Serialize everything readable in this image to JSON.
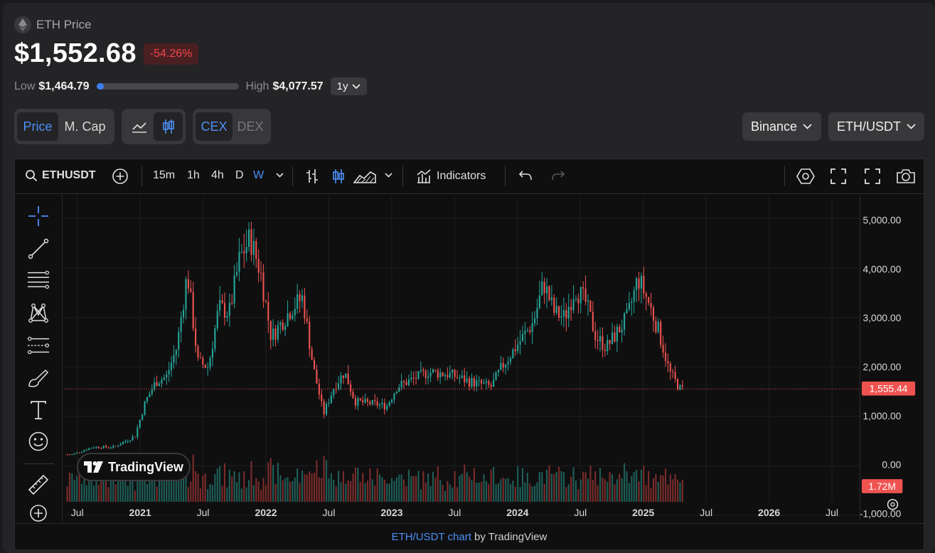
{
  "header": {
    "title": "ETH Price",
    "price": "$1,552.68",
    "change": "-54.26%",
    "range": {
      "low_label": "Low",
      "low": "$1,464.79",
      "high_label": "High",
      "high": "$4,077.57",
      "position_fraction": 0.03,
      "period": "1y"
    }
  },
  "controls": {
    "metric": [
      "Price",
      "M. Cap"
    ],
    "metric_selected": "Price",
    "venue": [
      "CEX",
      "DEX"
    ],
    "venue_selected": "CEX",
    "exchange": "Binance",
    "pair": "ETH/USDT"
  },
  "toolbar": {
    "symbol": "ETHUSDT",
    "intervals": [
      "15m",
      "1h",
      "4h",
      "D",
      "W"
    ],
    "interval_selected": "W",
    "indicators": "Indicators"
  },
  "icons": [
    "ethereum-icon",
    "chevron-down-icon",
    "line-chart-icon",
    "candlestick-icon",
    "search-icon",
    "plus-circle-icon",
    "bar-style-icon",
    "area-style-icon",
    "indicators-icon",
    "undo-icon",
    "redo-icon",
    "settings-icon",
    "fullscreen-icon",
    "expand-icon",
    "camera-icon",
    "crosshair-icon",
    "trendline-icon",
    "fib-icon",
    "pattern-icon",
    "forecast-icon",
    "brush-icon",
    "text-icon",
    "emoji-icon",
    "ruler-icon",
    "zoom-in-icon",
    "gear-icon"
  ],
  "colors": {
    "up": "#26a69a",
    "down": "#ef5350",
    "accent": "#3c7df0",
    "price_line": "#ef5350"
  },
  "chart_data": {
    "type": "candlestick",
    "interval": "weekly",
    "y_ticks": [
      "5,000.00",
      "4,000.00",
      "3,000.00",
      "2,000.00",
      "1,000.00",
      "0.00",
      "-1,000.00"
    ],
    "ylim": [
      -1100,
      5450
    ],
    "x_ticks": [
      "Jul",
      "2021",
      "Jul",
      "2022",
      "Jul",
      "2023",
      "Jul",
      "2024",
      "Jul",
      "2025",
      "Jul",
      "2026",
      "Jul"
    ],
    "last_price_label": "1,555.44",
    "last_price": 1555.44,
    "volume_label": "1.72M",
    "price_path": [
      [
        "2020-06",
        230
      ],
      [
        "2020-08",
        380
      ],
      [
        "2020-10",
        380
      ],
      [
        "2020-12",
        600
      ],
      [
        "2021-01",
        1300
      ],
      [
        "2021-02",
        1700
      ],
      [
        "2021-03",
        1800
      ],
      [
        "2021-04",
        2400
      ],
      [
        "2021-05",
        3900
      ],
      [
        "2021-06",
        2100
      ],
      [
        "2021-07",
        2000
      ],
      [
        "2021-08",
        3200
      ],
      [
        "2021-09",
        3100
      ],
      [
        "2021-10",
        4200
      ],
      [
        "2021-11",
        4600
      ],
      [
        "2021-12",
        3900
      ],
      [
        "2022-01",
        2600
      ],
      [
        "2022-03",
        3200
      ],
      [
        "2022-04",
        3400
      ],
      [
        "2022-05",
        2000
      ],
      [
        "2022-06",
        1050
      ],
      [
        "2022-07",
        1600
      ],
      [
        "2022-08",
        1900
      ],
      [
        "2022-09",
        1300
      ],
      [
        "2022-11",
        1250
      ],
      [
        "2022-12",
        1200
      ],
      [
        "2023-01",
        1600
      ],
      [
        "2023-04",
        1900
      ],
      [
        "2023-06",
        1850
      ],
      [
        "2023-08",
        1700
      ],
      [
        "2023-10",
        1600
      ],
      [
        "2023-11",
        2000
      ],
      [
        "2023-12",
        2300
      ],
      [
        "2024-02",
        2900
      ],
      [
        "2024-03",
        3700
      ],
      [
        "2024-04",
        3100
      ],
      [
        "2024-05",
        3000
      ],
      [
        "2024-06",
        3600
      ],
      [
        "2024-07",
        3300
      ],
      [
        "2024-08",
        2600
      ],
      [
        "2024-09",
        2400
      ],
      [
        "2024-11",
        3000
      ],
      [
        "2024-12",
        3800
      ],
      [
        "2025-01",
        3300
      ],
      [
        "2025-02",
        2700
      ],
      [
        "2025-03",
        1900
      ],
      [
        "2025-04",
        1555
      ]
    ]
  },
  "footer": {
    "link": "ETH/USDT chart",
    "suffix": " by TradingView"
  },
  "badge": "TradingView"
}
